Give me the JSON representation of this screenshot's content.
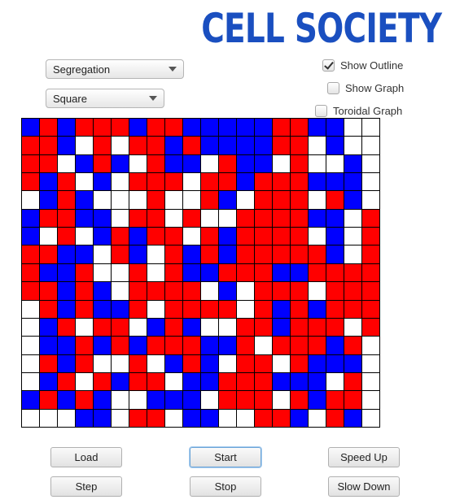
{
  "app": {
    "title": "CELL SOCIETY"
  },
  "controls": {
    "simulation_select": {
      "value": "Segregation"
    },
    "shape_select": {
      "value": "Square"
    },
    "show_outline": {
      "label": "Show Outline",
      "checked": true
    },
    "show_graph": {
      "label": "Show Graph",
      "checked": false
    },
    "toroidal_graph": {
      "label": "Toroidal Graph",
      "checked": false
    }
  },
  "buttons": {
    "load": "Load",
    "start": "Start",
    "speed_up": "Speed Up",
    "step": "Step",
    "stop": "Stop",
    "slow_down": "Slow Down"
  },
  "grid": {
    "columns": 20,
    "rows": 17,
    "colors": {
      "B": "#0000ff",
      "R": "#ff0000",
      "W": "#ffffff"
    },
    "cells": [
      "BRBRRRBRRBBBBBRRBBWW",
      "RRBWRWRRBRBBBBRRWBWW",
      "RRWBRBWRBBWRBBWRWWBW",
      "RBRWBWRRRWRRBRRRBBBW",
      "WBRBWWWRWWRBWRRRWRBW",
      "BRRBBWRRWRWWRRRRBBWR",
      "BWRWBRBRRWRBRRRRWBWR",
      "RRBBWRBWRBRBRRRRRBWR",
      "RBBRWWRWRBBRRRBBRRRR",
      "RRBRBWRRRRWBWRRRWRRR",
      "WRBRBBRWRRRRWRBRBRRR",
      "WBRWRRWBRBWWRRBRRRWR",
      "WBBRBRBRRRBBRWRRRBRW",
      "WRBRWWRWBRBWRRWRBBBW",
      "WBRWRBRRWBBRRRBBBWRW",
      "BRBRBWWBBBWRRRWRBRRW",
      "WWWBBWRRWBBWWRRBWRBW"
    ]
  }
}
